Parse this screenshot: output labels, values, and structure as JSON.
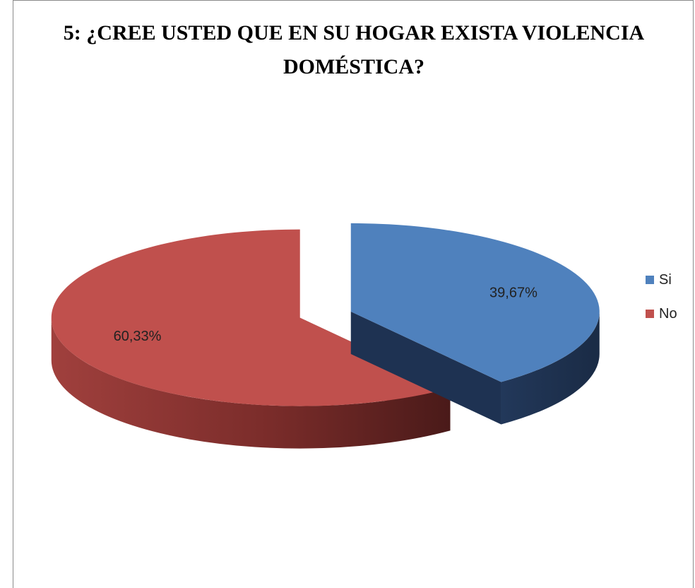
{
  "chart_data": {
    "type": "pie",
    "title_lines": [
      "5: ¿CREE USTED QUE EN SU HOGAR EXISTA VIOLENCIA",
      "DOMÉSTICA?"
    ],
    "categories": [
      "Si",
      "No"
    ],
    "values": [
      39.67,
      60.33
    ],
    "data_labels": [
      "39,67%",
      "60,33%"
    ],
    "legend_position": "right",
    "three_d": true,
    "exploded": true,
    "colors": {
      "Si": "#4f81bd",
      "Si_side": "#1f3350",
      "No": "#c0504d",
      "No_side": "#8e3735"
    }
  }
}
